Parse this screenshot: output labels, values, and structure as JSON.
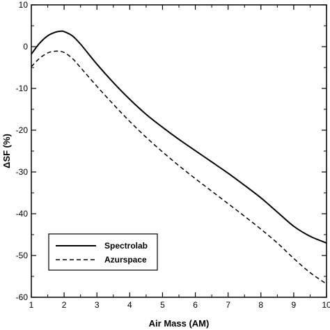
{
  "chart_data": {
    "type": "line",
    "xlabel": "Air Mass (AM)",
    "ylabel": "ΔSF (%)",
    "xlim": [
      1,
      10
    ],
    "ylim": [
      -60,
      10
    ],
    "xticks": [
      1,
      2,
      3,
      4,
      5,
      6,
      7,
      8,
      9,
      10
    ],
    "yticks": [
      10,
      0,
      -10,
      -20,
      -30,
      -40,
      -50,
      -60
    ],
    "grid": false,
    "legend_position": "bottom-left",
    "series": [
      {
        "name": "Spectrolab",
        "style": "solid",
        "x": [
          1.0,
          1.25,
          1.5,
          1.75,
          1.9,
          2.0,
          2.25,
          2.5,
          3.0,
          3.5,
          4.0,
          4.5,
          5.0,
          5.5,
          6.0,
          6.5,
          7.0,
          7.5,
          8.0,
          8.5,
          9.0,
          9.5,
          10.0
        ],
        "y": [
          -1.8,
          0.8,
          2.6,
          3.5,
          3.7,
          3.6,
          2.6,
          0.6,
          -4.2,
          -8.6,
          -12.6,
          -16.2,
          -19.3,
          -22.2,
          -24.9,
          -27.6,
          -30.3,
          -33.2,
          -36.2,
          -39.6,
          -43.0,
          -45.4,
          -47.0
        ]
      },
      {
        "name": "Azurspace",
        "style": "dashed",
        "x": [
          1.0,
          1.25,
          1.5,
          1.7,
          1.85,
          2.0,
          2.25,
          2.5,
          3.0,
          3.5,
          4.0,
          4.5,
          5.0,
          5.5,
          6.0,
          6.5,
          7.0,
          7.5,
          8.0,
          8.5,
          9.0,
          9.5,
          10.0
        ],
        "y": [
          -4.8,
          -2.8,
          -1.5,
          -1.1,
          -1.1,
          -1.4,
          -2.8,
          -5.0,
          -9.5,
          -13.8,
          -17.9,
          -21.7,
          -25.2,
          -28.5,
          -31.6,
          -34.6,
          -37.6,
          -40.6,
          -43.7,
          -47.0,
          -50.7,
          -54.1,
          -56.8
        ]
      }
    ]
  }
}
